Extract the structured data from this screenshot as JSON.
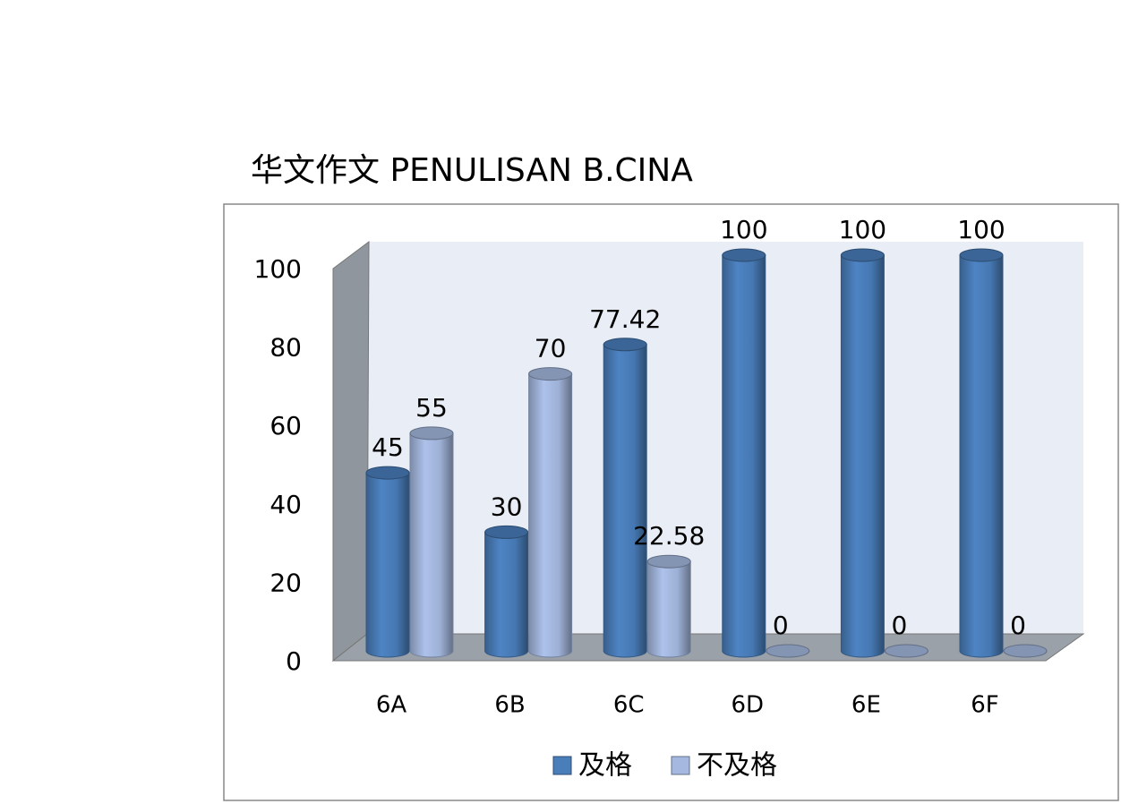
{
  "chart_data": {
    "type": "bar3d",
    "title": "华文作文 PENULISAN B.CINA",
    "categories": [
      "6A",
      "6B",
      "6C",
      "6D",
      "6E",
      "6F"
    ],
    "series": [
      {
        "name": "及格",
        "color": "#4a7ebb",
        "values": [
          45,
          30,
          77.42,
          100,
          100,
          100
        ]
      },
      {
        "name": "不及格",
        "color": "#a5b9e0",
        "values": [
          55,
          70,
          22.58,
          0,
          0,
          0
        ]
      }
    ],
    "ylim": [
      0,
      100
    ],
    "yticks": [
      0,
      20,
      40,
      60,
      80,
      100
    ],
    "grid": false,
    "legend": "bottom"
  }
}
